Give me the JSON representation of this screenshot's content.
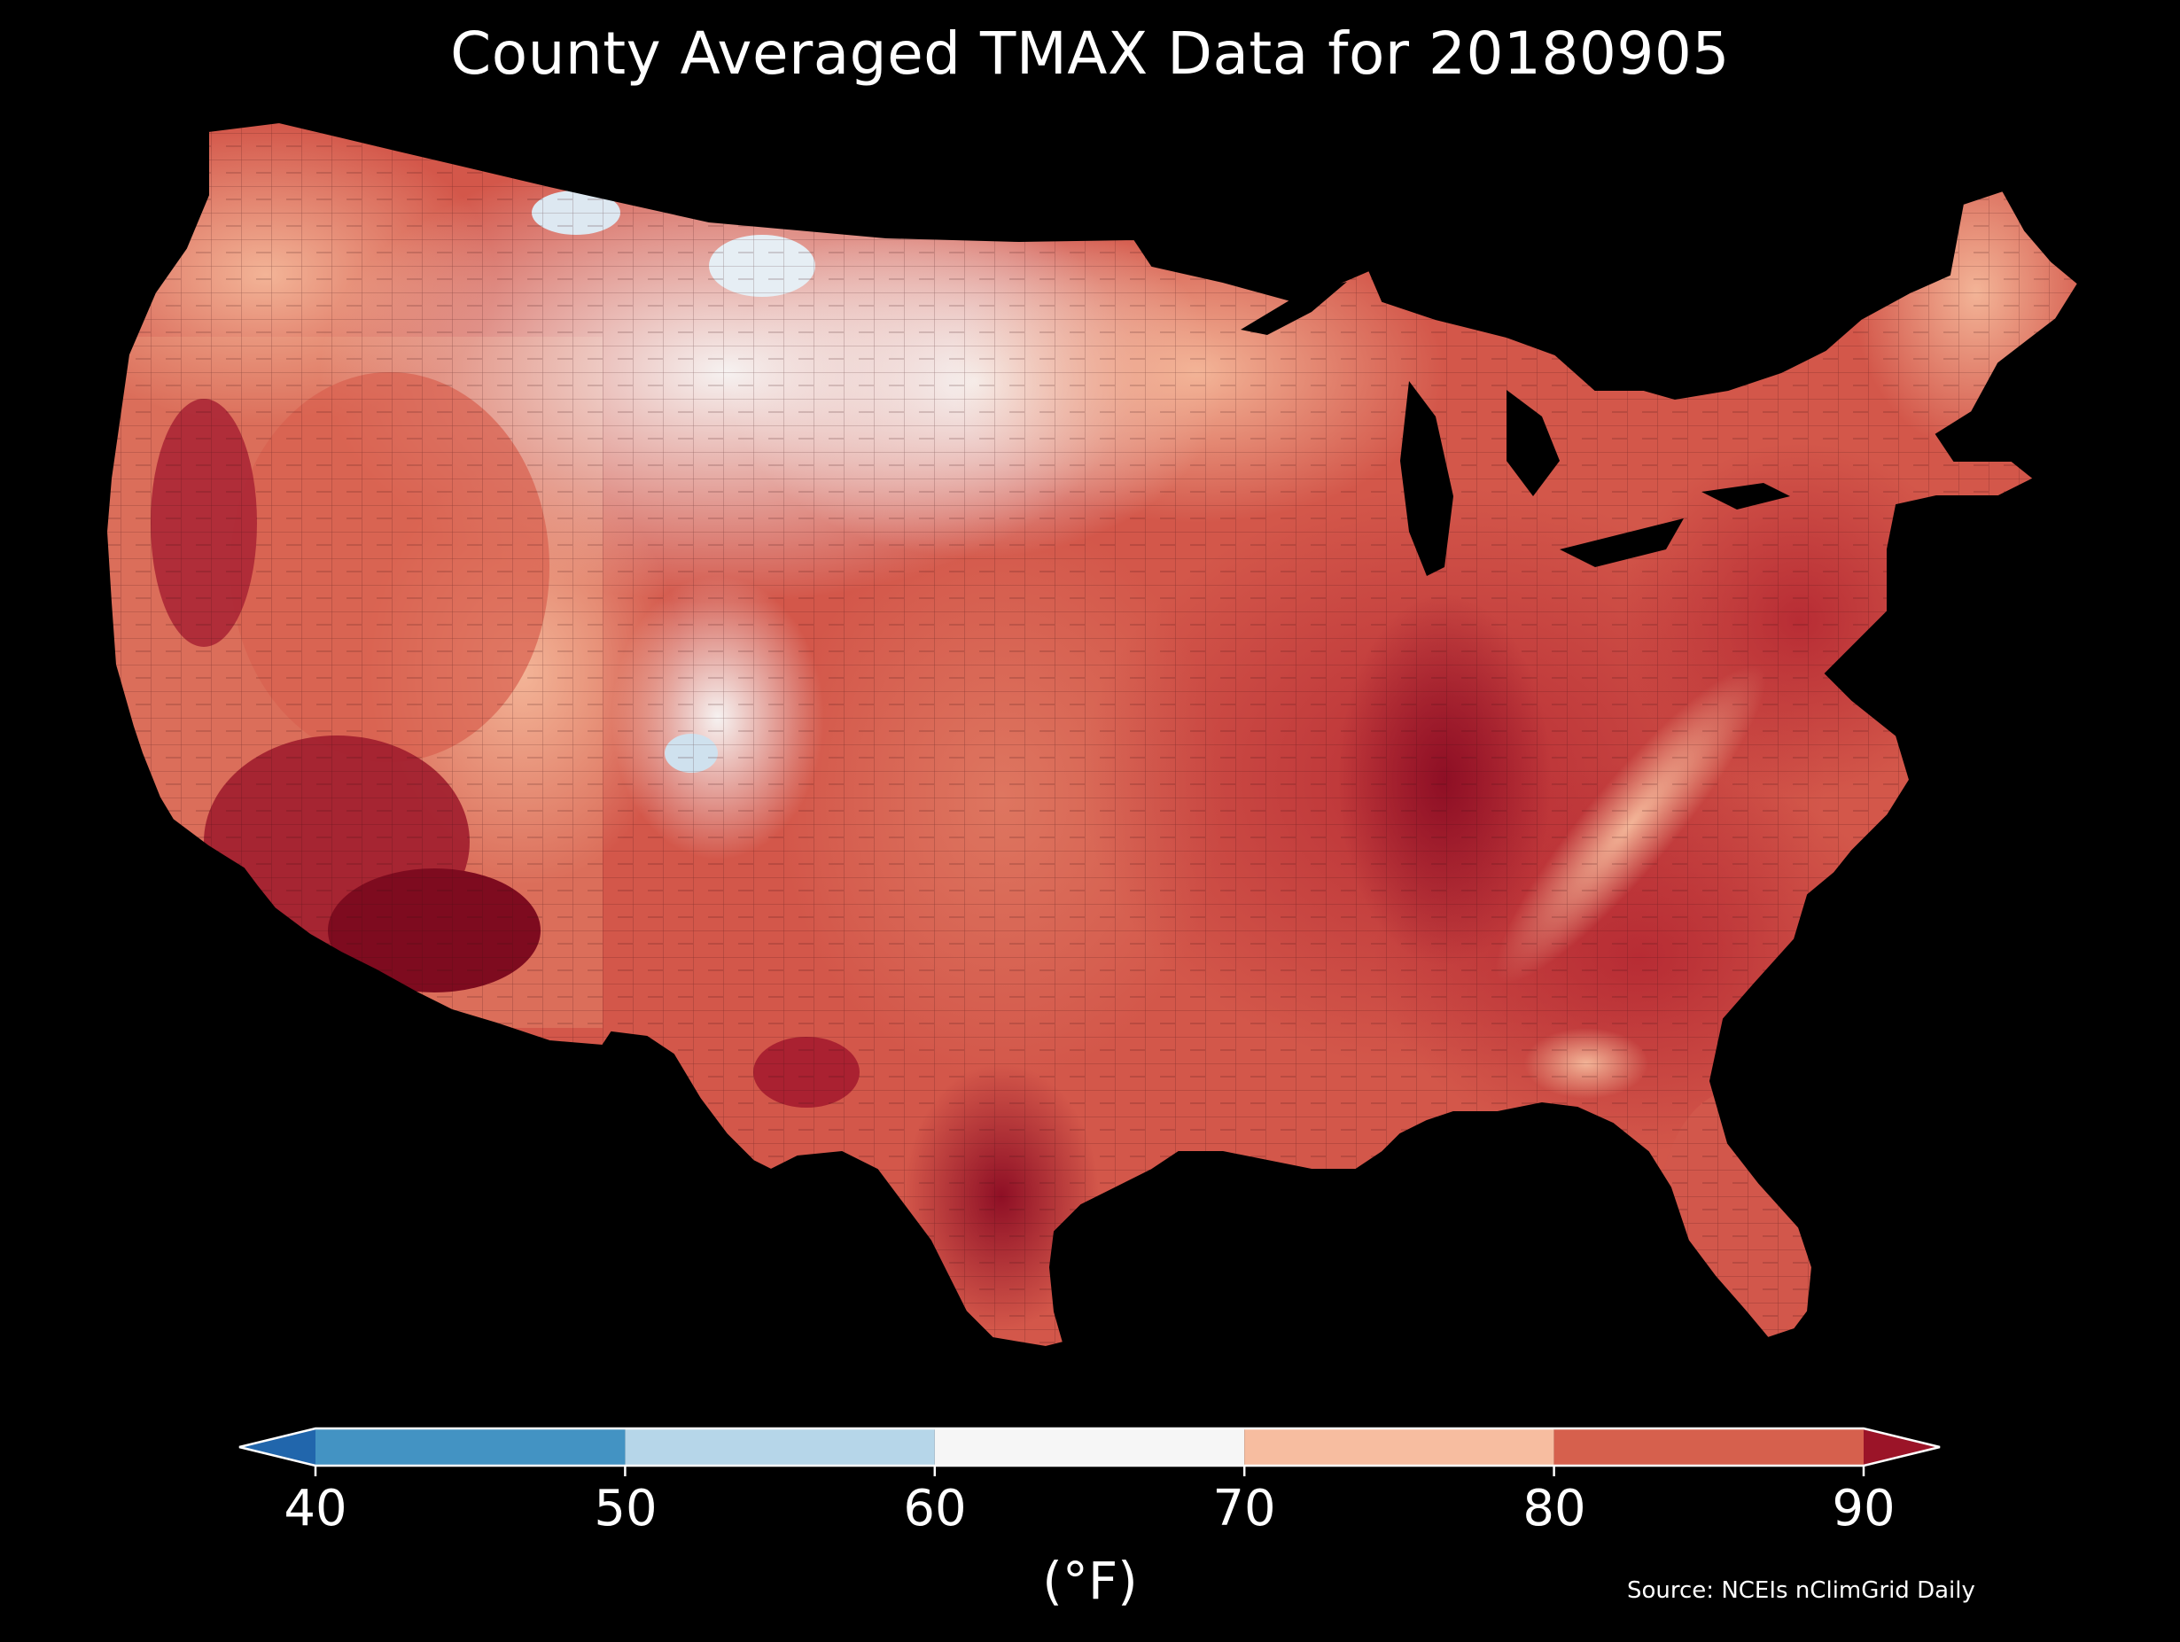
{
  "title": "County Averaged TMAX Data for 20180905",
  "colorbar": {
    "unit_label": "(°F)",
    "ticks": [
      "40",
      "50",
      "60",
      "70",
      "80",
      "90"
    ],
    "bins": [
      {
        "from": 40,
        "to": 50,
        "color": "#4393c3"
      },
      {
        "from": 50,
        "to": 60,
        "color": "#b6d6e9"
      },
      {
        "from": 60,
        "to": 70,
        "color": "#f6f6f6"
      },
      {
        "from": 70,
        "to": 80,
        "color": "#f7bda0"
      },
      {
        "from": 80,
        "to": 90,
        "color": "#d6604d"
      }
    ],
    "under_color": "#2166ac",
    "over_color": "#9b1428"
  },
  "source": "Source: NCEIs nClimGrid Daily",
  "map": {
    "region": "Contiguous United States",
    "variable": "TMAX",
    "date": "20180905",
    "region_colors": {
      "northwest_coast": "#f7c2a8",
      "northern_rockies_plains": "#f4f1f0",
      "north_cold_spots": "#e3edf4",
      "great_basin": "#dc6a55",
      "desert_southwest": "#9c1a2b",
      "central_plains": "#e9876d",
      "upper_midwest": "#f5c5ae",
      "midwest_southeast": "#c13a3c",
      "ohio_valley_core": "#a81d2d",
      "appalachians": "#ee9a7e",
      "new_england_north": "#f3b69a",
      "south_texas": "#a61d30",
      "florida": "#d05248"
    }
  }
}
